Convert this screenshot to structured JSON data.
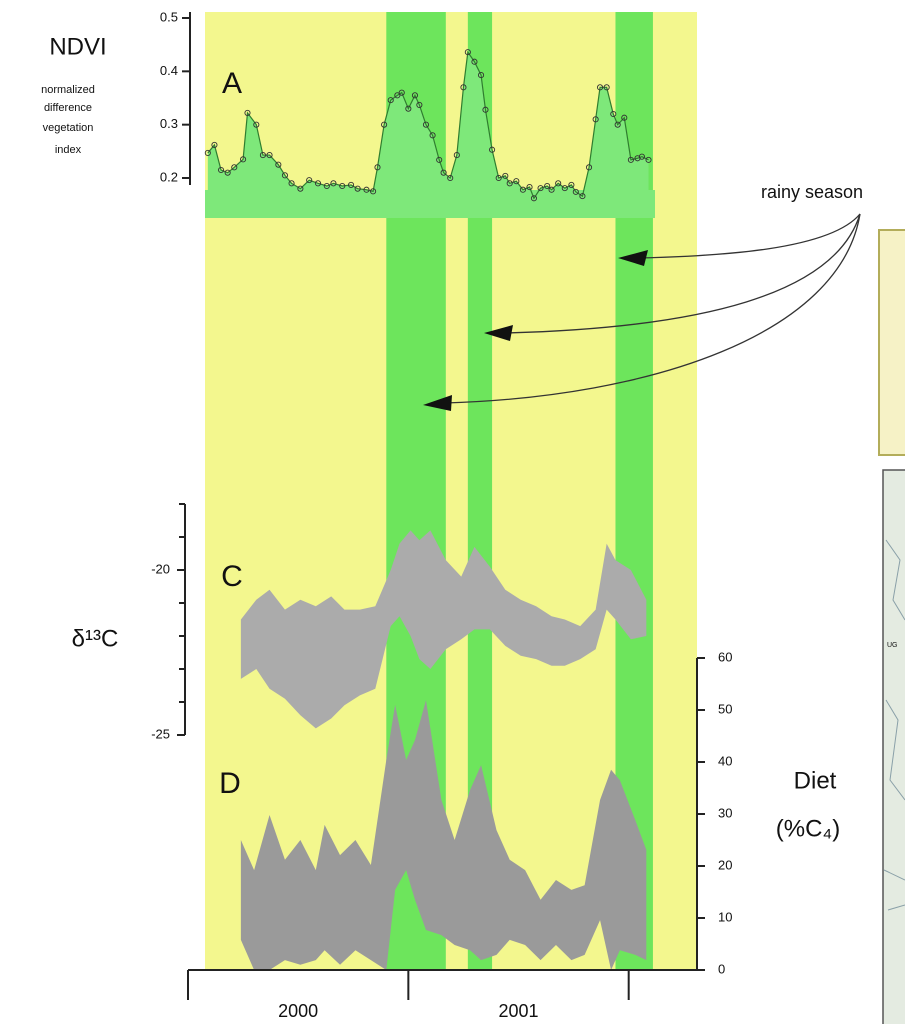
{
  "chart_data": [
    {
      "panel": "A",
      "type": "line",
      "title": "NDVI",
      "subtitle": [
        "normalized",
        "difference",
        "vegetation",
        "index"
      ],
      "x": [
        2000.09,
        2000.12,
        2000.15,
        2000.18,
        2000.21,
        2000.25,
        2000.27,
        2000.31,
        2000.34,
        2000.37,
        2000.41,
        2000.44,
        2000.47,
        2000.51,
        2000.55,
        2000.59,
        2000.63,
        2000.66,
        2000.7,
        2000.74,
        2000.77,
        2000.81,
        2000.84,
        2000.86,
        2000.89,
        2000.92,
        2000.95,
        2000.97,
        2001.0,
        2001.03,
        2001.05,
        2001.08,
        2001.11,
        2001.14,
        2001.16,
        2001.19,
        2001.22,
        2001.25,
        2001.27,
        2001.3,
        2001.33,
        2001.35,
        2001.38,
        2001.41,
        2001.44,
        2001.46,
        2001.49,
        2001.52,
        2001.55,
        2001.57,
        2001.6,
        2001.63,
        2001.65,
        2001.68,
        2001.71,
        2001.74,
        2001.76,
        2001.79,
        2001.82,
        2001.85,
        2001.87,
        2001.9,
        2001.93,
        2001.95,
        2001.98,
        2002.01,
        2002.04,
        2002.06,
        2002.09
      ],
      "values": [
        0.247,
        0.262,
        0.215,
        0.21,
        0.22,
        0.235,
        0.322,
        0.3,
        0.243,
        0.243,
        0.225,
        0.205,
        0.19,
        0.18,
        0.196,
        0.19,
        0.185,
        0.19,
        0.185,
        0.187,
        0.18,
        0.178,
        0.175,
        0.22,
        0.3,
        0.346,
        0.355,
        0.36,
        0.33,
        0.355,
        0.337,
        0.3,
        0.28,
        0.234,
        0.21,
        0.2,
        0.243,
        0.37,
        0.436,
        0.418,
        0.393,
        0.328,
        0.253,
        0.2,
        0.204,
        0.19,
        0.194,
        0.178,
        0.183,
        0.162,
        0.181,
        0.185,
        0.178,
        0.19,
        0.181,
        0.187,
        0.174,
        0.166,
        0.22,
        0.31,
        0.37,
        0.37,
        0.32,
        0.3,
        0.313,
        0.234,
        0.237,
        0.24,
        0.234
      ],
      "color": "#2f7d2f",
      "fill": "#7ee87a",
      "ylim": [
        0.2,
        0.5
      ],
      "yticks": [
        0.2,
        0.3,
        0.4,
        0.5
      ]
    },
    {
      "panel": "C",
      "type": "band",
      "ylabel": "δ¹³C",
      "x": [
        2000.24,
        2000.31,
        2000.37,
        2000.44,
        2000.51,
        2000.58,
        2000.65,
        2000.71,
        2000.78,
        2000.85,
        2000.92,
        2000.96,
        2001.01,
        2001.05,
        2001.1,
        2001.17,
        2001.24,
        2001.3,
        2001.37,
        2001.44,
        2001.51,
        2001.58,
        2001.65,
        2001.71,
        2001.78,
        2001.85,
        2001.9,
        2001.94,
        2002.01,
        2002.08
      ],
      "upper": [
        -21.5,
        -20.9,
        -20.6,
        -21.2,
        -20.9,
        -21.1,
        -20.8,
        -21.2,
        -21.2,
        -21.1,
        -20.0,
        -19.2,
        -18.8,
        -19.1,
        -18.8,
        -19.7,
        -20.2,
        -19.3,
        -19.9,
        -20.6,
        -20.9,
        -21.1,
        -21.4,
        -21.5,
        -21.7,
        -21.2,
        -19.2,
        -19.7,
        -20.0,
        -20.9
      ],
      "lower": [
        -23.3,
        -23.0,
        -23.6,
        -23.9,
        -24.4,
        -24.8,
        -24.5,
        -24.1,
        -23.8,
        -23.6,
        -21.7,
        -21.4,
        -22.0,
        -22.7,
        -23.0,
        -22.4,
        -22.1,
        -21.8,
        -21.8,
        -22.3,
        -22.6,
        -22.7,
        -22.9,
        -22.9,
        -22.7,
        -22.4,
        -21.2,
        -21.5,
        -22.1,
        -22.0
      ],
      "color": "#ababab",
      "ylim": [
        -25,
        -18
      ],
      "yticks": [
        -25,
        -20
      ],
      "minor_yticks": [
        -24,
        -23,
        -22,
        -21,
        -19,
        -18
      ]
    },
    {
      "panel": "D",
      "type": "band",
      "ylabel": [
        "Diet",
        "(%C₄)"
      ],
      "x": [
        2000.24,
        2000.3,
        2000.37,
        2000.44,
        2000.51,
        2000.58,
        2000.62,
        2000.69,
        2000.76,
        2000.83,
        2000.9,
        2000.94,
        2000.99,
        2001.03,
        2001.08,
        2001.15,
        2001.21,
        2001.28,
        2001.33,
        2001.4,
        2001.46,
        2001.53,
        2001.6,
        2001.67,
        2001.74,
        2001.8,
        2001.87,
        2001.92,
        2001.96,
        2002.03,
        2002.08
      ],
      "upper": [
        25,
        19.2,
        29.8,
        21.2,
        25,
        19.2,
        27.9,
        22.1,
        25,
        20.2,
        40.4,
        51,
        40.4,
        44.2,
        51.9,
        32.7,
        25,
        34.6,
        39.4,
        26.9,
        21.2,
        19.2,
        13.5,
        17.3,
        15.4,
        16.3,
        32.7,
        38.5,
        36.5,
        28.8,
        23.1
      ],
      "lower": [
        5.8,
        0,
        0,
        1.9,
        1,
        1.9,
        3.8,
        1,
        3.8,
        1.9,
        0,
        15.4,
        19.2,
        13.5,
        7.7,
        6.7,
        4.8,
        3.8,
        1.9,
        2.9,
        5.8,
        4.8,
        1.9,
        4.8,
        1.9,
        2.9,
        9.6,
        0,
        3.8,
        2.9,
        1.9
      ],
      "color": "#9a9a9a",
      "ylim": [
        0,
        60
      ],
      "yticks": [
        0,
        10,
        20,
        30,
        40,
        50,
        60
      ]
    }
  ],
  "time_axis": {
    "xlim": [
      2000,
      2002.31
    ],
    "xticks": [
      2000,
      2001,
      2002
    ],
    "year_labels": [
      "2000",
      "2001"
    ]
  },
  "rainy_season": {
    "label": "rainy season",
    "periods": [
      [
        2000.9,
        2001.17
      ],
      [
        2001.27,
        2001.38
      ],
      [
        2001.94,
        2002.11
      ]
    ],
    "color": "#6de55c"
  },
  "background_color": "#f3f78e",
  "map_label": "UG"
}
